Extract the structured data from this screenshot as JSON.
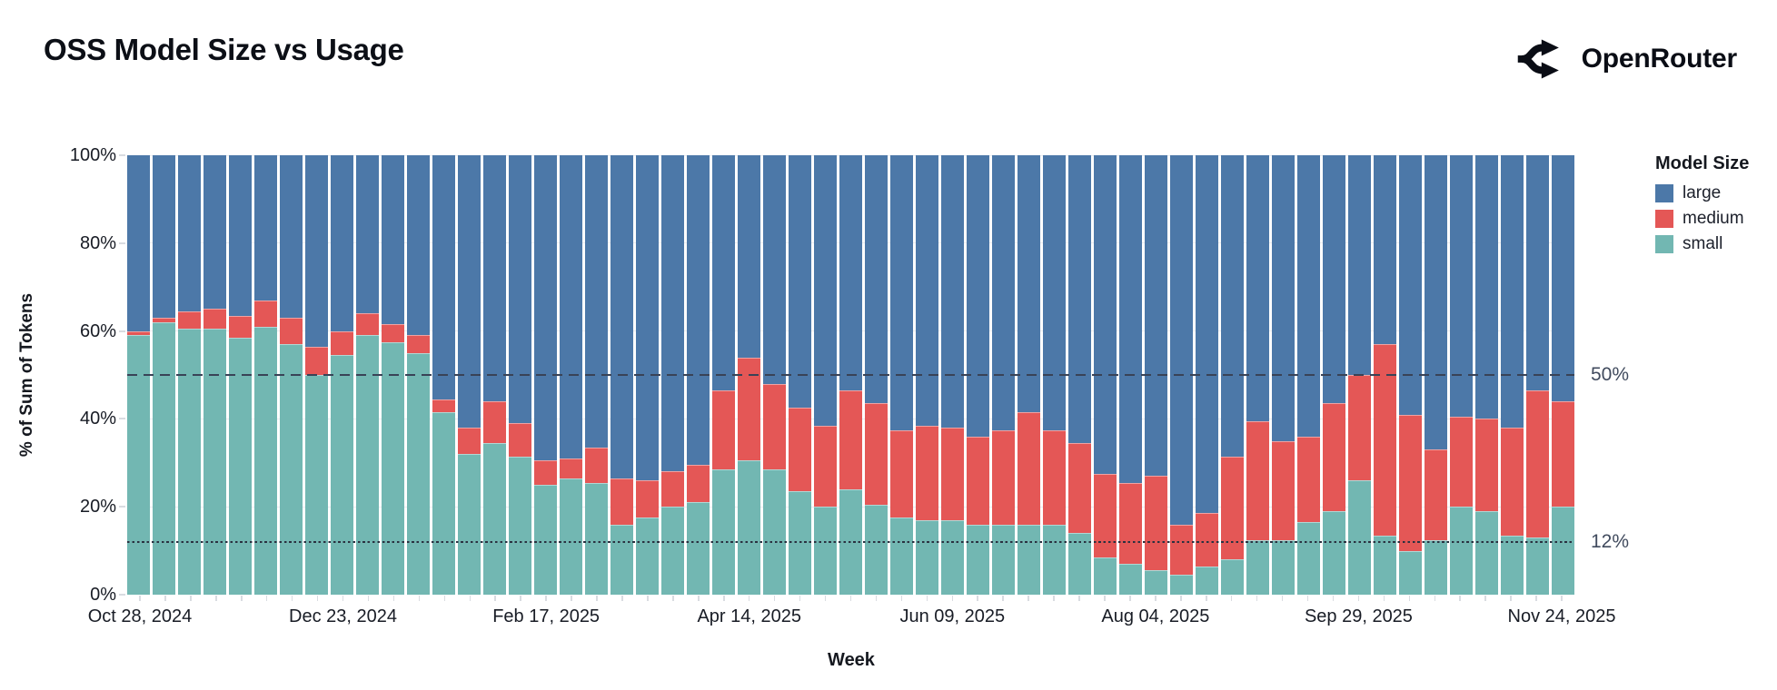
{
  "header": {
    "title": "OSS Model Size vs Usage",
    "brand": "OpenRouter"
  },
  "chart_data": {
    "type": "bar",
    "stacked": true,
    "normalized_percent": true,
    "title": "OSS Model Size vs Usage",
    "xlabel": "Week",
    "ylabel": "% of Sum of Tokens",
    "ylim": [
      0,
      100
    ],
    "grid": true,
    "y_ticks": [
      0,
      20,
      40,
      60,
      80,
      100
    ],
    "y_tick_suffix": "%",
    "x_tick_labels": [
      "Oct 28, 2024",
      "Dec 23, 2024",
      "Feb 17, 2025",
      "Apr 14, 2025",
      "Jun 09, 2025",
      "Aug 04, 2025",
      "Sep 29, 2025",
      "Nov 24, 2025"
    ],
    "x_tick_indices": [
      0,
      8,
      16,
      24,
      32,
      40,
      48,
      56
    ],
    "categories": [
      "Oct 28, 2024",
      "Nov 04, 2024",
      "Nov 11, 2024",
      "Nov 18, 2024",
      "Nov 25, 2024",
      "Dec 02, 2024",
      "Dec 09, 2024",
      "Dec 16, 2024",
      "Dec 23, 2024",
      "Dec 30, 2024",
      "Jan 06, 2025",
      "Jan 13, 2025",
      "Jan 20, 2025",
      "Jan 27, 2025",
      "Feb 03, 2025",
      "Feb 10, 2025",
      "Feb 17, 2025",
      "Feb 24, 2025",
      "Mar 03, 2025",
      "Mar 10, 2025",
      "Mar 17, 2025",
      "Mar 24, 2025",
      "Mar 31, 2025",
      "Apr 07, 2025",
      "Apr 14, 2025",
      "Apr 21, 2025",
      "Apr 28, 2025",
      "May 05, 2025",
      "May 12, 2025",
      "May 19, 2025",
      "May 26, 2025",
      "Jun 02, 2025",
      "Jun 09, 2025",
      "Jun 16, 2025",
      "Jun 23, 2025",
      "Jun 30, 2025",
      "Jul 07, 2025",
      "Jul 14, 2025",
      "Jul 21, 2025",
      "Jul 28, 2025",
      "Aug 04, 2025",
      "Aug 11, 2025",
      "Aug 18, 2025",
      "Aug 25, 2025",
      "Sep 01, 2025",
      "Sep 08, 2025",
      "Sep 15, 2025",
      "Sep 22, 2025",
      "Sep 29, 2025",
      "Oct 06, 2025",
      "Oct 13, 2025",
      "Oct 20, 2025",
      "Oct 27, 2025",
      "Nov 03, 2025",
      "Nov 10, 2025",
      "Nov 17, 2025",
      "Nov 24, 2025"
    ],
    "series": [
      {
        "name": "small",
        "color": "#72b7b2",
        "values": [
          59,
          62,
          60.5,
          60.5,
          58.5,
          61,
          57,
          50,
          54.5,
          59,
          57.5,
          55,
          41.5,
          32,
          34.5,
          31.5,
          25,
          26.5,
          25.5,
          16,
          17.5,
          20,
          21,
          28.5,
          30.5,
          28.5,
          23.5,
          20,
          24,
          20.5,
          17.5,
          17,
          17,
          16,
          16,
          16,
          16,
          14,
          8.5,
          7,
          5.5,
          4.5,
          6.5,
          8,
          12.5,
          12.5,
          16.5,
          19,
          26,
          13.5,
          10,
          12.5,
          20,
          19,
          13.5,
          13,
          20
        ]
      },
      {
        "name": "medium",
        "color": "#e45756",
        "values": [
          1,
          1,
          4,
          4.5,
          5,
          6,
          6,
          6.5,
          5.5,
          5,
          4,
          4,
          3,
          6,
          9.5,
          7.5,
          5.5,
          4.5,
          8,
          10.5,
          8.5,
          8,
          8.5,
          18,
          23.5,
          19.5,
          19,
          18.5,
          22.5,
          23,
          20,
          21.5,
          21,
          20,
          21.5,
          25.5,
          21.5,
          20.5,
          19,
          18.5,
          21.5,
          11.5,
          12,
          23.5,
          27,
          22.5,
          19.5,
          24.5,
          24,
          43.5,
          31,
          20.5,
          20.5,
          21,
          24.5,
          33.5,
          24
        ]
      },
      {
        "name": "large",
        "color": "#4c78a8",
        "values": [
          40,
          37,
          35.5,
          35,
          36.5,
          33,
          37,
          43.5,
          40,
          36,
          38.5,
          41,
          55.5,
          62,
          56,
          61,
          69.5,
          69,
          66.5,
          73.5,
          74,
          72,
          70.5,
          53.5,
          46,
          52,
          57.5,
          61.5,
          53.5,
          56.5,
          62.5,
          61.5,
          62,
          64,
          62.5,
          58.5,
          62.5,
          65.5,
          72.5,
          74.5,
          73,
          84,
          81.5,
          68.5,
          60.5,
          65,
          64,
          56.5,
          50,
          43,
          59,
          67,
          59.5,
          60,
          62,
          53.5,
          56
        ]
      }
    ],
    "stack_order_bottom_to_top": [
      "small",
      "medium",
      "large"
    ],
    "reference_lines": [
      {
        "label": "50%",
        "value": 50,
        "style": "dashed"
      },
      {
        "label": "12%",
        "value": 12,
        "style": "dotted"
      }
    ],
    "legend": {
      "title": "Model Size",
      "entries": [
        {
          "label": "large",
          "color": "#4c78a8"
        },
        {
          "label": "medium",
          "color": "#e45756"
        },
        {
          "label": "small",
          "color": "#72b7b2"
        }
      ],
      "position": "right"
    }
  }
}
